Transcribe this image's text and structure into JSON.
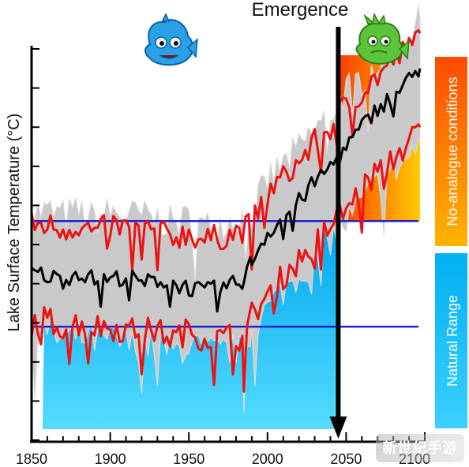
{
  "chart_data": {
    "type": "line",
    "title": "",
    "ylabel": "Lake Surface Temperature (°C)",
    "xlabel": "",
    "xlim": [
      1850,
      2100
    ],
    "ylim": [
      0,
      10
    ],
    "x_ticks": [
      1850,
      1900,
      1950,
      2000,
      2050,
      2100
    ],
    "x_tick_labels": [
      "1850",
      "1900",
      "1950",
      "2000",
      "2050",
      "2100"
    ],
    "emergence_label": "Emergence",
    "emergence_year": 2045,
    "natural_range": {
      "lower": 2.9,
      "upper": 5.6
    },
    "bands": {
      "no_analogue_label": "No-analogue conditions",
      "natural_range_label": "Natural Range"
    },
    "series": [
      {
        "role": "mean",
        "color": "#000000",
        "points": [
          [
            1850,
            4.3
          ],
          [
            1860,
            4.2
          ],
          [
            1870,
            4.1
          ],
          [
            1880,
            4.3
          ],
          [
            1890,
            4.1
          ],
          [
            1900,
            4.1
          ],
          [
            1910,
            4.2
          ],
          [
            1920,
            4.0
          ],
          [
            1930,
            4.1
          ],
          [
            1940,
            4.0
          ],
          [
            1950,
            3.9
          ],
          [
            1960,
            3.8
          ],
          [
            1970,
            3.9
          ],
          [
            1980,
            4.0
          ],
          [
            1985,
            4.1
          ],
          [
            1990,
            4.6
          ],
          [
            2000,
            5.3
          ],
          [
            2010,
            5.7
          ],
          [
            2020,
            6.1
          ],
          [
            2030,
            6.6
          ],
          [
            2040,
            7.0
          ],
          [
            2050,
            7.5
          ],
          [
            2060,
            8.0
          ],
          [
            2070,
            8.5
          ],
          [
            2080,
            8.8
          ],
          [
            2090,
            9.2
          ],
          [
            2097,
            9.5
          ]
        ]
      },
      {
        "role": "upper",
        "color": "#ee1111",
        "points": [
          [
            1850,
            5.5
          ],
          [
            1860,
            5.5
          ],
          [
            1870,
            5.4
          ],
          [
            1880,
            5.5
          ],
          [
            1890,
            5.3
          ],
          [
            1900,
            5.5
          ],
          [
            1910,
            5.4
          ],
          [
            1920,
            5.4
          ],
          [
            1930,
            5.3
          ],
          [
            1940,
            5.2
          ],
          [
            1950,
            5.3
          ],
          [
            1960,
            5.1
          ],
          [
            1970,
            5.2
          ],
          [
            1980,
            5.3
          ],
          [
            1990,
            5.5
          ],
          [
            2000,
            6.3
          ],
          [
            2010,
            6.7
          ],
          [
            2020,
            7.1
          ],
          [
            2030,
            7.6
          ],
          [
            2040,
            8.0
          ],
          [
            2050,
            8.6
          ],
          [
            2060,
            8.9
          ],
          [
            2070,
            9.3
          ],
          [
            2080,
            9.7
          ],
          [
            2090,
            10.0
          ],
          [
            2097,
            10.4
          ]
        ]
      },
      {
        "role": "lower",
        "color": "#ee1111",
        "points": [
          [
            1850,
            3.0
          ],
          [
            1860,
            3.1
          ],
          [
            1870,
            2.9
          ],
          [
            1880,
            3.0
          ],
          [
            1890,
            2.9
          ],
          [
            1900,
            2.9
          ],
          [
            1910,
            2.8
          ],
          [
            1920,
            2.8
          ],
          [
            1930,
            2.8
          ],
          [
            1940,
            2.6
          ],
          [
            1950,
            2.8
          ],
          [
            1960,
            2.6
          ],
          [
            1970,
            2.6
          ],
          [
            1980,
            2.7
          ],
          [
            1985,
            2.5
          ],
          [
            1990,
            3.2
          ],
          [
            2000,
            3.7
          ],
          [
            2010,
            4.2
          ],
          [
            2020,
            4.6
          ],
          [
            2030,
            5.0
          ],
          [
            2040,
            5.5
          ],
          [
            2050,
            5.9
          ],
          [
            2060,
            6.4
          ],
          [
            2070,
            6.9
          ],
          [
            2080,
            7.2
          ],
          [
            2090,
            7.6
          ],
          [
            2097,
            8.0
          ]
        ]
      }
    ],
    "colors": {
      "envelope": "#c9c9c9",
      "threshold_line": "#2222cc",
      "natural_fill_top": "#00b8f0",
      "natural_fill_bottom": "#3fd4ff",
      "no_analogue_top": "#ff5a00",
      "no_analogue_bottom": "#ffb800"
    }
  },
  "mascots": {
    "left_icon": "blue-fish-icon",
    "right_icon": "green-fish-icon"
  },
  "watermark": "新世纪手游"
}
